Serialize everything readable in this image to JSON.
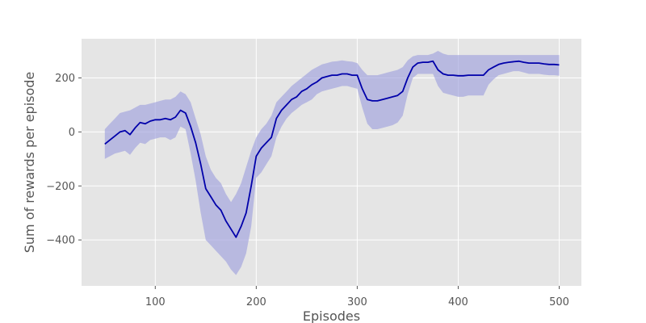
{
  "chart_data": {
    "type": "line",
    "title": "",
    "xlabel": "Episodes",
    "ylabel": "Sum of rewards per episode",
    "xlim": [
      27,
      522
    ],
    "ylim": [
      -570,
      345
    ],
    "x_ticks": [
      100,
      200,
      300,
      400,
      500
    ],
    "y_ticks": [
      -400,
      -200,
      0,
      200
    ],
    "x_tick_labels": [
      "100",
      "200",
      "300",
      "400",
      "500"
    ],
    "y_tick_labels": [
      "−400",
      "−200",
      "0",
      "200"
    ],
    "grid": true,
    "legend": "none",
    "colors": {
      "plot_background": "#e5e5e5",
      "grid": "#ffffff",
      "line": "#0000aa",
      "band": "#9fa1dd"
    },
    "series": [
      {
        "x": [
          50,
          55,
          60,
          65,
          70,
          75,
          80,
          85,
          90,
          95,
          100,
          105,
          110,
          115,
          120,
          125,
          130,
          135,
          140,
          145,
          150,
          155,
          160,
          165,
          170,
          175,
          180,
          185,
          190,
          195,
          200,
          205,
          210,
          215,
          220,
          225,
          230,
          235,
          240,
          245,
          250,
          255,
          260,
          265,
          270,
          275,
          280,
          285,
          290,
          295,
          300,
          305,
          310,
          315,
          320,
          325,
          330,
          335,
          340,
          345,
          350,
          355,
          360,
          365,
          370,
          375,
          380,
          385,
          390,
          395,
          400,
          405,
          410,
          415,
          420,
          425,
          430,
          435,
          440,
          445,
          450,
          455,
          460,
          465,
          470,
          475,
          480,
          485,
          490,
          495,
          500
        ],
        "mean": [
          -45,
          -30,
          -15,
          0,
          5,
          -10,
          15,
          35,
          30,
          40,
          45,
          45,
          50,
          45,
          55,
          80,
          70,
          20,
          -40,
          -120,
          -210,
          -240,
          -270,
          -290,
          -330,
          -360,
          -390,
          -350,
          -300,
          -200,
          -90,
          -60,
          -40,
          -20,
          50,
          80,
          100,
          120,
          130,
          150,
          160,
          175,
          185,
          200,
          205,
          210,
          210,
          215,
          215,
          210,
          210,
          160,
          120,
          115,
          115,
          120,
          125,
          130,
          135,
          150,
          200,
          240,
          255,
          258,
          258,
          262,
          230,
          215,
          210,
          210,
          208,
          208,
          210,
          210,
          210,
          210,
          230,
          240,
          250,
          255,
          258,
          260,
          262,
          258,
          255,
          255,
          255,
          252,
          250,
          250,
          248
        ],
        "upper": [
          10,
          30,
          50,
          70,
          75,
          80,
          90,
          100,
          100,
          105,
          110,
          115,
          120,
          120,
          130,
          150,
          140,
          110,
          50,
          -10,
          -90,
          -140,
          -170,
          -190,
          -230,
          -260,
          -230,
          -190,
          -130,
          -70,
          -20,
          10,
          30,
          60,
          110,
          130,
          150,
          170,
          185,
          200,
          215,
          230,
          240,
          250,
          255,
          260,
          262,
          265,
          262,
          260,
          255,
          230,
          210,
          210,
          210,
          215,
          220,
          225,
          230,
          240,
          265,
          280,
          285,
          285,
          285,
          290,
          300,
          290,
          285,
          285,
          285,
          285,
          285,
          285,
          285,
          285,
          285,
          285,
          285,
          285,
          285,
          285,
          285,
          285,
          285,
          285,
          285,
          285,
          285,
          285,
          285
        ],
        "lower": [
          -100,
          -90,
          -80,
          -75,
          -70,
          -85,
          -60,
          -40,
          -45,
          -30,
          -25,
          -20,
          -20,
          -30,
          -20,
          20,
          10,
          -80,
          -180,
          -300,
          -400,
          -420,
          -440,
          -460,
          -480,
          -510,
          -530,
          -500,
          -450,
          -350,
          -170,
          -150,
          -120,
          -90,
          -20,
          20,
          50,
          70,
          85,
          100,
          110,
          120,
          140,
          150,
          155,
          160,
          165,
          170,
          170,
          165,
          160,
          90,
          30,
          10,
          10,
          15,
          20,
          25,
          35,
          60,
          140,
          200,
          215,
          215,
          215,
          215,
          170,
          145,
          140,
          135,
          130,
          130,
          135,
          135,
          135,
          135,
          175,
          195,
          210,
          215,
          220,
          225,
          225,
          220,
          215,
          215,
          215,
          212,
          210,
          210,
          208
        ]
      }
    ]
  }
}
